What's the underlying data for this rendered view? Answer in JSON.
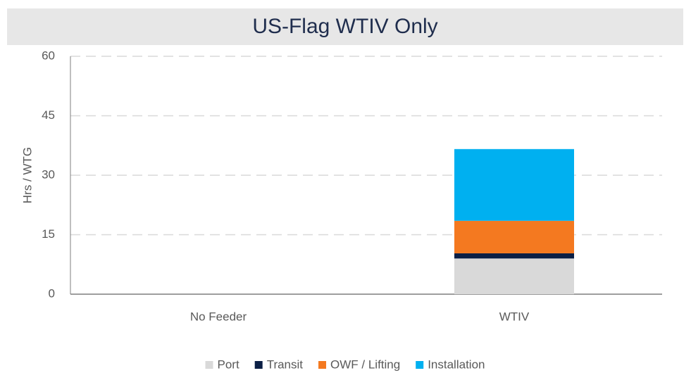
{
  "chart_data": {
    "type": "stacked_bar",
    "title": "US-Flag WTIV Only",
    "y_label": "Hrs / WTG",
    "categories": [
      "No Feeder",
      "WTIV"
    ],
    "series": [
      {
        "name": "Port",
        "color": "#d9d9d9",
        "values": [
          null,
          9
        ]
      },
      {
        "name": "Transit",
        "color": "#0b1f45",
        "values": [
          null,
          1.3
        ]
      },
      {
        "name": "OWF / Lifting",
        "color": "#f47920",
        "values": [
          null,
          8.2
        ]
      },
      {
        "name": "Installation",
        "color": "#00b0f0",
        "values": [
          null,
          18.1
        ]
      }
    ],
    "ylim": [
      0,
      60
    ],
    "yticks": [
      0,
      15,
      30,
      45,
      60
    ],
    "grid": true,
    "legend": "bottom"
  }
}
